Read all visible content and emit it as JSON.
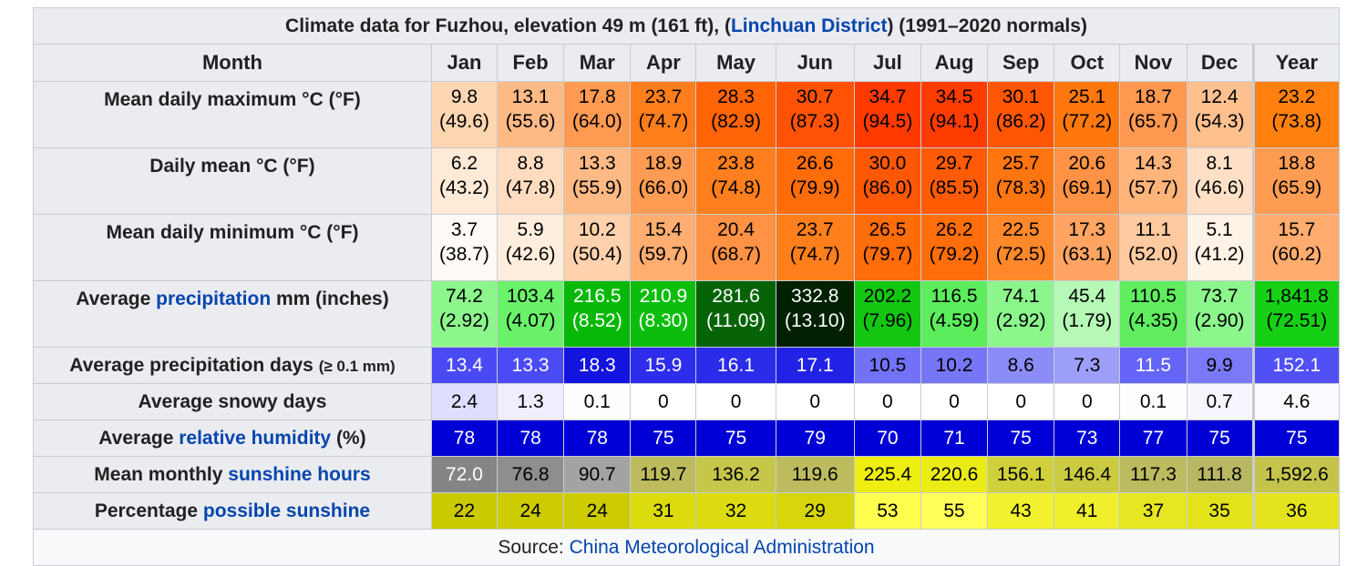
{
  "caption": {
    "prefix": "Climate data for Fuzhou, elevation 49 m (161 ft), (",
    "link": "Linchuan District",
    "suffix": ") (1991–2020 normals)"
  },
  "header": {
    "month": "Month",
    "months": [
      "Jan",
      "Feb",
      "Mar",
      "Apr",
      "May",
      "Jun",
      "Jul",
      "Aug",
      "Sep",
      "Oct",
      "Nov",
      "Dec"
    ],
    "year": "Year"
  },
  "rows": [
    {
      "label_pre": "Mean daily maximum °C (°F)",
      "label_link": "",
      "label_post": "",
      "label_small": "",
      "twoLine": true,
      "cells": [
        {
          "v": "9.8",
          "s": "(49.6)",
          "bg": "#ffd6b2",
          "fg": "#000000"
        },
        {
          "v": "13.1",
          "s": "(55.6)",
          "bg": "#ffba86",
          "fg": "#000000"
        },
        {
          "v": "17.8",
          "s": "(64.0)",
          "bg": "#ff9a52",
          "fg": "#000000"
        },
        {
          "v": "23.7",
          "s": "(74.7)",
          "bg": "#ff7e1c",
          "fg": "#000000"
        },
        {
          "v": "28.3",
          "s": "(82.9)",
          "bg": "#ff6407",
          "fg": "#000000"
        },
        {
          "v": "30.7",
          "s": "(87.3)",
          "bg": "#ff5204",
          "fg": "#000000"
        },
        {
          "v": "34.7",
          "s": "(94.5)",
          "bg": "#ff3a00",
          "fg": "#000000"
        },
        {
          "v": "34.5",
          "s": "(94.1)",
          "bg": "#ff3c00",
          "fg": "#000000"
        },
        {
          "v": "30.1",
          "s": "(86.2)",
          "bg": "#ff5604",
          "fg": "#000000"
        },
        {
          "v": "25.1",
          "s": "(77.2)",
          "bg": "#ff780e",
          "fg": "#000000"
        },
        {
          "v": "18.7",
          "s": "(65.7)",
          "bg": "#ff9850",
          "fg": "#000000"
        },
        {
          "v": "12.4",
          "s": "(54.3)",
          "bg": "#ffc090",
          "fg": "#000000"
        },
        {
          "v": "23.2",
          "s": "(73.8)",
          "bg": "#ff800f",
          "fg": "#000000"
        }
      ]
    },
    {
      "label_pre": "Daily mean °C (°F)",
      "label_link": "",
      "label_post": "",
      "label_small": "",
      "twoLine": true,
      "cells": [
        {
          "v": "6.2",
          "s": "(43.2)",
          "bg": "#ffead6",
          "fg": "#000000"
        },
        {
          "v": "8.8",
          "s": "(47.8)",
          "bg": "#ffdcbf",
          "fg": "#000000"
        },
        {
          "v": "13.3",
          "s": "(55.9)",
          "bg": "#ffb984",
          "fg": "#000000"
        },
        {
          "v": "18.9",
          "s": "(66.0)",
          "bg": "#ff9b52",
          "fg": "#000000"
        },
        {
          "v": "23.8",
          "s": "(74.8)",
          "bg": "#ff7f1e",
          "fg": "#000000"
        },
        {
          "v": "26.6",
          "s": "(79.9)",
          "bg": "#ff6c0a",
          "fg": "#000000"
        },
        {
          "v": "30.0",
          "s": "(86.0)",
          "bg": "#ff5804",
          "fg": "#000000"
        },
        {
          "v": "29.7",
          "s": "(85.5)",
          "bg": "#ff5a04",
          "fg": "#000000"
        },
        {
          "v": "25.7",
          "s": "(78.3)",
          "bg": "#ff7510",
          "fg": "#000000"
        },
        {
          "v": "20.6",
          "s": "(69.1)",
          "bg": "#ff9244",
          "fg": "#000000"
        },
        {
          "v": "14.3",
          "s": "(57.7)",
          "bg": "#ffb47a",
          "fg": "#000000"
        },
        {
          "v": "8.1",
          "s": "(46.6)",
          "bg": "#ffe0c6",
          "fg": "#000000"
        },
        {
          "v": "18.8",
          "s": "(65.9)",
          "bg": "#ff9c54",
          "fg": "#000000"
        }
      ]
    },
    {
      "label_pre": "Mean daily minimum °C (°F)",
      "label_link": "",
      "label_post": "",
      "label_small": "",
      "twoLine": true,
      "cells": [
        {
          "v": "3.7",
          "s": "(38.7)",
          "bg": "#fffaf6",
          "fg": "#000000"
        },
        {
          "v": "5.9",
          "s": "(42.6)",
          "bg": "#ffeedd",
          "fg": "#000000"
        },
        {
          "v": "10.2",
          "s": "(50.4)",
          "bg": "#ffd1ac",
          "fg": "#000000"
        },
        {
          "v": "15.4",
          "s": "(59.7)",
          "bg": "#ffad70",
          "fg": "#000000"
        },
        {
          "v": "20.4",
          "s": "(68.7)",
          "bg": "#ff9244",
          "fg": "#000000"
        },
        {
          "v": "23.7",
          "s": "(74.7)",
          "bg": "#ff7f1c",
          "fg": "#000000"
        },
        {
          "v": "26.5",
          "s": "(79.7)",
          "bg": "#ff6c0a",
          "fg": "#000000"
        },
        {
          "v": "26.2",
          "s": "(79.2)",
          "bg": "#ff6e0b",
          "fg": "#000000"
        },
        {
          "v": "22.5",
          "s": "(72.5)",
          "bg": "#ff882a",
          "fg": "#000000"
        },
        {
          "v": "17.3",
          "s": "(63.1)",
          "bg": "#ffa462",
          "fg": "#000000"
        },
        {
          "v": "11.1",
          "s": "(52.0)",
          "bg": "#ffcaa0",
          "fg": "#000000"
        },
        {
          "v": "5.1",
          "s": "(41.2)",
          "bg": "#fff2e6",
          "fg": "#000000"
        },
        {
          "v": "15.7",
          "s": "(60.2)",
          "bg": "#ffac6e",
          "fg": "#000000"
        }
      ]
    },
    {
      "label_pre": "Average ",
      "label_link": "precipitation",
      "label_post": " mm (inches)",
      "label_small": "",
      "twoLine": true,
      "cells": [
        {
          "v": "74.2",
          "s": "(2.92)",
          "bg": "#8cf58c",
          "fg": "#000000"
        },
        {
          "v": "103.4",
          "s": "(4.07)",
          "bg": "#6af26a",
          "fg": "#000000"
        },
        {
          "v": "216.5",
          "s": "(8.52)",
          "bg": "#08b808",
          "fg": "#ffffff"
        },
        {
          "v": "210.9",
          "s": "(8.30)",
          "bg": "#0cbd0c",
          "fg": "#ffffff"
        },
        {
          "v": "281.6",
          "s": "(11.09)",
          "bg": "#066406",
          "fg": "#ffffff"
        },
        {
          "v": "332.8",
          "s": "(13.10)",
          "bg": "#022002",
          "fg": "#ffffff"
        },
        {
          "v": "202.2",
          "s": "(7.96)",
          "bg": "#12c612",
          "fg": "#000000"
        },
        {
          "v": "116.5",
          "s": "(4.59)",
          "bg": "#5ced5c",
          "fg": "#000000"
        },
        {
          "v": "74.1",
          "s": "(2.92)",
          "bg": "#8cf58c",
          "fg": "#000000"
        },
        {
          "v": "45.4",
          "s": "(1.79)",
          "bg": "#b6f9b6",
          "fg": "#000000"
        },
        {
          "v": "110.5",
          "s": "(4.35)",
          "bg": "#60ee60",
          "fg": "#000000"
        },
        {
          "v": "73.7",
          "s": "(2.90)",
          "bg": "#8cf58c",
          "fg": "#000000"
        },
        {
          "v": "1,841.8",
          "s": "(72.51)",
          "bg": "#16d016",
          "fg": "#000000"
        }
      ]
    },
    {
      "label_pre": "Average precipitation days ",
      "label_link": "",
      "label_post": "",
      "label_small": "(≥ 0.1 mm)",
      "twoLine": false,
      "cells": [
        {
          "v": "13.4",
          "bg": "#4a4af5",
          "fg": "#ffffff"
        },
        {
          "v": "13.3",
          "bg": "#4b4bf5",
          "fg": "#ffffff"
        },
        {
          "v": "18.3",
          "bg": "#1414e0",
          "fg": "#ffffff"
        },
        {
          "v": "15.9",
          "bg": "#2d2deb",
          "fg": "#ffffff"
        },
        {
          "v": "16.1",
          "bg": "#2b2bea",
          "fg": "#ffffff"
        },
        {
          "v": "17.1",
          "bg": "#2222e6",
          "fg": "#ffffff"
        },
        {
          "v": "10.5",
          "bg": "#7272f7",
          "fg": "#000000"
        },
        {
          "v": "10.2",
          "bg": "#7676f7",
          "fg": "#000000"
        },
        {
          "v": "8.6",
          "bg": "#8c8cf9",
          "fg": "#000000"
        },
        {
          "v": "7.3",
          "bg": "#9d9dfa",
          "fg": "#000000"
        },
        {
          "v": "11.5",
          "bg": "#6464f6",
          "fg": "#ffffff"
        },
        {
          "v": "9.9",
          "bg": "#7a7af8",
          "fg": "#000000"
        },
        {
          "v": "152.1",
          "bg": "#5050f5",
          "fg": "#ffffff"
        }
      ]
    },
    {
      "label_pre": "Average snowy days",
      "label_link": "",
      "label_post": "",
      "label_small": "",
      "twoLine": false,
      "cells": [
        {
          "v": "2.4",
          "bg": "#dedefe",
          "fg": "#000000"
        },
        {
          "v": "1.3",
          "bg": "#eeeeff",
          "fg": "#000000"
        },
        {
          "v": "0.1",
          "bg": "#fefeff",
          "fg": "#000000"
        },
        {
          "v": "0",
          "bg": "#ffffff",
          "fg": "#000000"
        },
        {
          "v": "0",
          "bg": "#ffffff",
          "fg": "#000000"
        },
        {
          "v": "0",
          "bg": "#ffffff",
          "fg": "#000000"
        },
        {
          "v": "0",
          "bg": "#ffffff",
          "fg": "#000000"
        },
        {
          "v": "0",
          "bg": "#ffffff",
          "fg": "#000000"
        },
        {
          "v": "0",
          "bg": "#ffffff",
          "fg": "#000000"
        },
        {
          "v": "0",
          "bg": "#ffffff",
          "fg": "#000000"
        },
        {
          "v": "0.1",
          "bg": "#fefeff",
          "fg": "#000000"
        },
        {
          "v": "0.7",
          "bg": "#f6f6ff",
          "fg": "#000000"
        },
        {
          "v": "4.6",
          "bg": "#fafaff",
          "fg": "#000000"
        }
      ]
    },
    {
      "label_pre": "Average ",
      "label_link": "relative humidity",
      "label_post": " (%)",
      "label_small": "",
      "twoLine": false,
      "cells": [
        {
          "v": "78",
          "bg": "#0000d6",
          "fg": "#ffffff"
        },
        {
          "v": "78",
          "bg": "#0000d6",
          "fg": "#ffffff"
        },
        {
          "v": "78",
          "bg": "#0000d6",
          "fg": "#ffffff"
        },
        {
          "v": "75",
          "bg": "#0000d6",
          "fg": "#ffffff"
        },
        {
          "v": "75",
          "bg": "#0000d6",
          "fg": "#ffffff"
        },
        {
          "v": "79",
          "bg": "#0000d6",
          "fg": "#ffffff"
        },
        {
          "v": "70",
          "bg": "#0000d6",
          "fg": "#ffffff"
        },
        {
          "v": "71",
          "bg": "#0000d6",
          "fg": "#ffffff"
        },
        {
          "v": "75",
          "bg": "#0000d6",
          "fg": "#ffffff"
        },
        {
          "v": "73",
          "bg": "#0000d6",
          "fg": "#ffffff"
        },
        {
          "v": "77",
          "bg": "#0000d6",
          "fg": "#ffffff"
        },
        {
          "v": "75",
          "bg": "#0000d6",
          "fg": "#ffffff"
        },
        {
          "v": "75",
          "bg": "#0000d6",
          "fg": "#ffffff"
        }
      ]
    },
    {
      "label_pre": "Mean monthly ",
      "label_link": "sunshine hours",
      "label_post": "",
      "label_small": "",
      "twoLine": false,
      "cells": [
        {
          "v": "72.0",
          "bg": "#858585",
          "fg": "#ffffff"
        },
        {
          "v": "76.8",
          "bg": "#8e8e8e",
          "fg": "#000000"
        },
        {
          "v": "90.7",
          "bg": "#a3a3a3",
          "fg": "#000000"
        },
        {
          "v": "119.7",
          "bg": "#bcbc5e",
          "fg": "#000000"
        },
        {
          "v": "136.2",
          "bg": "#c6c64a",
          "fg": "#000000"
        },
        {
          "v": "119.6",
          "bg": "#bcbc5e",
          "fg": "#000000"
        },
        {
          "v": "225.4",
          "bg": "#eded12",
          "fg": "#000000"
        },
        {
          "v": "220.6",
          "bg": "#ebeb16",
          "fg": "#000000"
        },
        {
          "v": "156.1",
          "bg": "#d0d03a",
          "fg": "#000000"
        },
        {
          "v": "146.4",
          "bg": "#cbcb42",
          "fg": "#000000"
        },
        {
          "v": "117.3",
          "bg": "#bbbb60",
          "fg": "#000000"
        },
        {
          "v": "111.8",
          "bg": "#b8b864",
          "fg": "#000000"
        },
        {
          "v": "1,592.6",
          "bg": "#c4c44c",
          "fg": "#000000"
        }
      ]
    },
    {
      "label_pre": "Percentage ",
      "label_link": "possible sunshine",
      "label_post": "",
      "label_small": "",
      "twoLine": false,
      "cells": [
        {
          "v": "22",
          "bg": "#caca00",
          "fg": "#000000"
        },
        {
          "v": "24",
          "bg": "#cccc00",
          "fg": "#000000"
        },
        {
          "v": "24",
          "bg": "#cccc00",
          "fg": "#000000"
        },
        {
          "v": "31",
          "bg": "#dbdb0e",
          "fg": "#000000"
        },
        {
          "v": "32",
          "bg": "#dcdc10",
          "fg": "#000000"
        },
        {
          "v": "29",
          "bg": "#d6d60a",
          "fg": "#000000"
        },
        {
          "v": "53",
          "bg": "#ffff50",
          "fg": "#000000"
        },
        {
          "v": "55",
          "bg": "#ffff58",
          "fg": "#000000"
        },
        {
          "v": "43",
          "bg": "#f2f230",
          "fg": "#000000"
        },
        {
          "v": "41",
          "bg": "#efef2c",
          "fg": "#000000"
        },
        {
          "v": "37",
          "bg": "#e6e622",
          "fg": "#000000"
        },
        {
          "v": "35",
          "bg": "#e3e31c",
          "fg": "#000000"
        },
        {
          "v": "36",
          "bg": "#e4e41e",
          "fg": "#000000"
        }
      ]
    }
  ],
  "source": {
    "prefix": "Source: ",
    "link": "China Meteorological Administration"
  }
}
